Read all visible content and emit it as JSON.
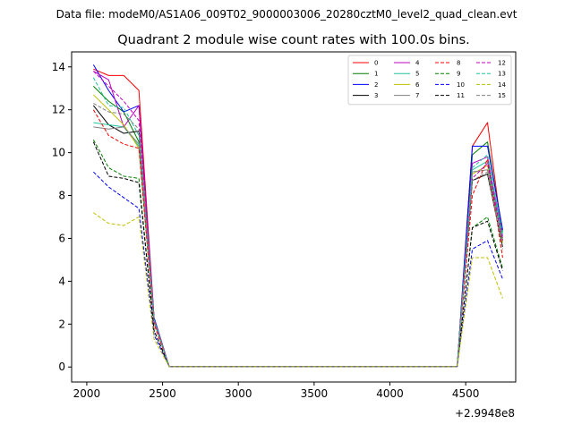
{
  "header": {
    "supertitle": "Data file: modeM0/AS1A06_009T02_9000003006_20280cztM0_level2_quad_clean.evt"
  },
  "chart_data": {
    "type": "line",
    "title": "Quadrant 2 module wise count rates with 100.0s bins.",
    "xlabel": "",
    "ylabel": "",
    "x_offset_label": "+2.9948e8",
    "xlim": [
      1900,
      4830
    ],
    "ylim": [
      -0.7,
      14.7
    ],
    "xticks": [
      2000,
      2500,
      3000,
      3500,
      4000,
      4500
    ],
    "yticks": [
      0,
      2,
      4,
      6,
      8,
      10,
      12,
      14
    ],
    "grid": false,
    "legend": {
      "placement": "top-right",
      "columns": 4
    },
    "x": [
      2044,
      2144,
      2244,
      2344,
      2444,
      2544,
      2644,
      2744,
      2844,
      2944,
      3044,
      3144,
      3244,
      3344,
      3444,
      3544,
      3644,
      3744,
      3844,
      3944,
      4044,
      4144,
      4244,
      4344,
      4444,
      4544,
      4644,
      4744
    ],
    "series": [
      {
        "name": "0",
        "color": "#ff0000",
        "dash": "solid",
        "values": [
          13.9,
          13.6,
          13.6,
          12.9,
          2.3,
          0.02,
          0.02,
          0.02,
          0.02,
          0.02,
          0.02,
          0.02,
          0.02,
          0.02,
          0.02,
          0.02,
          0.02,
          0.02,
          0.02,
          0.02,
          0.02,
          0.02,
          0.02,
          0.02,
          0.02,
          10.3,
          11.4,
          6.0
        ]
      },
      {
        "name": "1",
        "color": "#008000",
        "dash": "solid",
        "values": [
          13.1,
          12.4,
          11.9,
          10.5,
          2.2,
          0.02,
          0.02,
          0.02,
          0.02,
          0.02,
          0.02,
          0.02,
          0.02,
          0.02,
          0.02,
          0.02,
          0.02,
          0.02,
          0.02,
          0.02,
          0.02,
          0.02,
          0.02,
          0.02,
          0.02,
          9.9,
          10.5,
          6.3
        ]
      },
      {
        "name": "2",
        "color": "#0000ff",
        "dash": "solid",
        "values": [
          14.1,
          12.9,
          11.9,
          12.2,
          2.3,
          0.02,
          0.02,
          0.02,
          0.02,
          0.02,
          0.02,
          0.02,
          0.02,
          0.02,
          0.02,
          0.02,
          0.02,
          0.02,
          0.02,
          0.02,
          0.02,
          0.02,
          0.02,
          0.02,
          0.02,
          10.3,
          10.3,
          6.4
        ]
      },
      {
        "name": "3",
        "color": "#000000",
        "dash": "solid",
        "values": [
          12.2,
          11.3,
          10.9,
          11.0,
          2.1,
          0.02,
          0.02,
          0.02,
          0.02,
          0.02,
          0.02,
          0.02,
          0.02,
          0.02,
          0.02,
          0.02,
          0.02,
          0.02,
          0.02,
          0.02,
          0.02,
          0.02,
          0.02,
          0.02,
          0.02,
          8.7,
          9.0,
          5.6
        ]
      },
      {
        "name": "4",
        "color": "#bf00bf",
        "dash": "solid",
        "values": [
          13.8,
          13.4,
          11.2,
          12.2,
          2.2,
          0.02,
          0.02,
          0.02,
          0.02,
          0.02,
          0.02,
          0.02,
          0.02,
          0.02,
          0.02,
          0.02,
          0.02,
          0.02,
          0.02,
          0.02,
          0.02,
          0.02,
          0.02,
          0.02,
          0.02,
          9.5,
          9.8,
          6.1
        ]
      },
      {
        "name": "5",
        "color": "#1fc4a0",
        "dash": "solid",
        "values": [
          11.4,
          11.3,
          11.2,
          10.3,
          2.1,
          0.02,
          0.02,
          0.02,
          0.02,
          0.02,
          0.02,
          0.02,
          0.02,
          0.02,
          0.02,
          0.02,
          0.02,
          0.02,
          0.02,
          0.02,
          0.02,
          0.02,
          0.02,
          0.02,
          0.02,
          9.2,
          9.6,
          6.0
        ]
      },
      {
        "name": "6",
        "color": "#bfbf00",
        "dash": "solid",
        "values": [
          12.7,
          12.0,
          11.3,
          10.2,
          2.1,
          0.02,
          0.02,
          0.02,
          0.02,
          0.02,
          0.02,
          0.02,
          0.02,
          0.02,
          0.02,
          0.02,
          0.02,
          0.02,
          0.02,
          0.02,
          0.02,
          0.02,
          0.02,
          0.02,
          0.02,
          9.0,
          9.4,
          5.8
        ]
      },
      {
        "name": "7",
        "color": "#808080",
        "dash": "solid",
        "values": [
          11.2,
          11.1,
          11.2,
          10.4,
          2.1,
          0.02,
          0.02,
          0.02,
          0.02,
          0.02,
          0.02,
          0.02,
          0.02,
          0.02,
          0.02,
          0.02,
          0.02,
          0.02,
          0.02,
          0.02,
          0.02,
          0.02,
          0.02,
          0.02,
          0.02,
          9.1,
          9.2,
          5.9
        ]
      },
      {
        "name": "8",
        "color": "#ff0000",
        "dash": "dashed",
        "values": [
          12.0,
          10.8,
          10.4,
          10.2,
          2.0,
          0.02,
          0.02,
          0.02,
          0.02,
          0.02,
          0.02,
          0.02,
          0.02,
          0.02,
          0.02,
          0.02,
          0.02,
          0.02,
          0.02,
          0.02,
          0.02,
          0.02,
          0.02,
          0.02,
          0.02,
          8.0,
          9.7,
          5.1
        ]
      },
      {
        "name": "9",
        "color": "#008000",
        "dash": "dashed",
        "values": [
          10.6,
          9.3,
          8.9,
          8.8,
          1.7,
          0.02,
          0.02,
          0.02,
          0.02,
          0.02,
          0.02,
          0.02,
          0.02,
          0.02,
          0.02,
          0.02,
          0.02,
          0.02,
          0.02,
          0.02,
          0.02,
          0.02,
          0.02,
          0.02,
          0.02,
          6.5,
          7.0,
          4.6
        ]
      },
      {
        "name": "10",
        "color": "#0000ff",
        "dash": "dashed",
        "values": [
          9.1,
          8.4,
          7.9,
          7.4,
          1.5,
          0.02,
          0.02,
          0.02,
          0.02,
          0.02,
          0.02,
          0.02,
          0.02,
          0.02,
          0.02,
          0.02,
          0.02,
          0.02,
          0.02,
          0.02,
          0.02,
          0.02,
          0.02,
          0.02,
          0.02,
          5.5,
          5.9,
          4.1
        ]
      },
      {
        "name": "11",
        "color": "#000000",
        "dash": "dashed",
        "values": [
          10.5,
          8.9,
          8.8,
          8.6,
          1.7,
          0.02,
          0.02,
          0.02,
          0.02,
          0.02,
          0.02,
          0.02,
          0.02,
          0.02,
          0.02,
          0.02,
          0.02,
          0.02,
          0.02,
          0.02,
          0.02,
          0.02,
          0.02,
          0.02,
          0.02,
          6.5,
          6.8,
          4.5
        ]
      },
      {
        "name": "12",
        "color": "#bf00bf",
        "dash": "dashed",
        "values": [
          13.8,
          13.1,
          12.4,
          11.5,
          2.2,
          0.02,
          0.02,
          0.02,
          0.02,
          0.02,
          0.02,
          0.02,
          0.02,
          0.02,
          0.02,
          0.02,
          0.02,
          0.02,
          0.02,
          0.02,
          0.02,
          0.02,
          0.02,
          0.02,
          0.02,
          8.8,
          9.5,
          5.9
        ]
      },
      {
        "name": "13",
        "color": "#1fc4a0",
        "dash": "dashed",
        "values": [
          13.5,
          12.2,
          12.1,
          10.8,
          2.2,
          0.02,
          0.02,
          0.02,
          0.02,
          0.02,
          0.02,
          0.02,
          0.02,
          0.02,
          0.02,
          0.02,
          0.02,
          0.02,
          0.02,
          0.02,
          0.02,
          0.02,
          0.02,
          0.02,
          0.02,
          9.3,
          9.9,
          6.2
        ]
      },
      {
        "name": "14",
        "color": "#bfbf00",
        "dash": "dashed",
        "values": [
          7.2,
          6.7,
          6.6,
          7.0,
          1.3,
          0.02,
          0.02,
          0.02,
          0.02,
          0.02,
          0.02,
          0.02,
          0.02,
          0.02,
          0.02,
          0.02,
          0.02,
          0.02,
          0.02,
          0.02,
          0.02,
          0.02,
          0.02,
          0.02,
          0.02,
          5.1,
          5.1,
          3.2
        ]
      },
      {
        "name": "15",
        "color": "#808080",
        "dash": "dashed",
        "values": [
          12.3,
          11.9,
          11.8,
          11.1,
          2.2,
          0.02,
          0.02,
          0.02,
          0.02,
          0.02,
          0.02,
          0.02,
          0.02,
          0.02,
          0.02,
          0.02,
          0.02,
          0.02,
          0.02,
          0.02,
          0.02,
          0.02,
          0.02,
          0.02,
          0.02,
          8.7,
          9.1,
          5.5
        ]
      }
    ]
  }
}
